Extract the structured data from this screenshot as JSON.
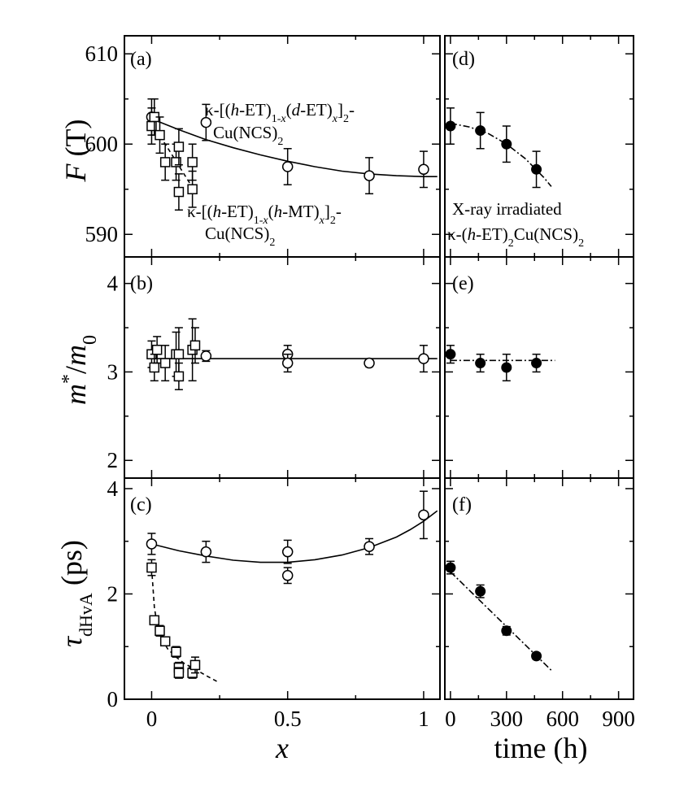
{
  "chart_data": [
    {
      "panel": "(a)",
      "type": "scatter",
      "ylabel": "F (T)",
      "xlabel": "x",
      "xlim": [
        -0.1,
        1.06
      ],
      "ylim": [
        587.5,
        612
      ],
      "xticks": [
        "0",
        "0.5",
        "1"
      ],
      "yticks": [
        "590",
        "600",
        "610"
      ],
      "annotations": [
        "κ-[(h-ET)1-x(d-ET)x]2-Cu(NCS)2",
        "κ-[(h-ET)1-x(h-MT)x]2-Cu(NCS)2"
      ],
      "series": [
        {
          "name": "κ-[(h-ET)1-x(d-ET)x]2-Cu(NCS)2",
          "marker": "circle-open",
          "x": [
            0,
            0.2,
            0.5,
            0.8,
            1.0
          ],
          "y": [
            603,
            602.4,
            597.5,
            596.5,
            597.2
          ],
          "err": [
            2,
            2,
            2,
            2,
            2
          ],
          "fit": "solid",
          "fit_x": [
            0,
            0.1,
            0.2,
            0.3,
            0.4,
            0.5,
            0.6,
            0.7,
            0.8,
            0.9,
            1.0,
            1.05
          ],
          "fit_y": [
            602.8,
            601.6,
            600.5,
            599.6,
            598.8,
            598.1,
            597.5,
            597.0,
            596.7,
            596.5,
            596.4,
            596.4
          ]
        },
        {
          "name": "κ-[(h-ET)1-x(h-MT)x]2-Cu(NCS)2",
          "marker": "square-open",
          "x": [
            0,
            0.01,
            0.03,
            0.05,
            0.09,
            0.1,
            0.1,
            0.15,
            0.15
          ],
          "y": [
            602,
            603,
            601,
            598,
            598,
            599.7,
            594.7,
            598,
            595
          ],
          "err": [
            2,
            2,
            2,
            2,
            2,
            2,
            2,
            2,
            2
          ],
          "fit": "dashed",
          "fit_x": [
            0,
            0.05,
            0.1,
            0.15
          ],
          "fit_y": [
            602.2,
            600.0,
            597.6,
            595.2
          ]
        }
      ]
    },
    {
      "panel": "(b)",
      "type": "scatter",
      "ylabel": "m*/m0",
      "xlim": [
        -0.1,
        1.06
      ],
      "ylim": [
        1.8,
        4.3
      ],
      "yticks": [
        "2",
        "3",
        "4"
      ],
      "series": [
        {
          "name": "κ-[(h-ET)1-x(d-ET)x]2-Cu(NCS)2",
          "marker": "circle-open",
          "x": [
            0.2,
            0.5,
            0.5,
            0.8,
            1.0
          ],
          "y": [
            3.18,
            3.2,
            3.1,
            3.1,
            3.15
          ],
          "err": [
            0.06,
            0.1,
            0.1,
            0.04,
            0.15
          ],
          "fit": "solid",
          "fit_x": [
            0,
            1.05
          ],
          "fit_y": [
            3.15,
            3.15
          ]
        },
        {
          "name": "κ-[(h-ET)1-x(h-MT)x]2-Cu(NCS)2",
          "marker": "square-open",
          "x": [
            0,
            0.01,
            0.02,
            0.05,
            0.09,
            0.1,
            0.1,
            0.15,
            0.16
          ],
          "y": [
            3.2,
            3.05,
            3.25,
            3.1,
            3.2,
            3.2,
            2.95,
            3.25,
            3.3
          ],
          "err": [
            0.15,
            0.15,
            0.15,
            0.2,
            0.25,
            0.3,
            0.15,
            0.35,
            0.2
          ]
        }
      ]
    },
    {
      "panel": "(c)",
      "type": "scatter",
      "ylabel": "τdHvA (ps)",
      "xlabel": "x",
      "xlim": [
        -0.1,
        1.06
      ],
      "ylim": [
        0,
        4.2
      ],
      "yticks": [
        "0",
        "2",
        "4"
      ],
      "series": [
        {
          "name": "κ-[(h-ET)1-x(d-ET)x]2-Cu(NCS)2",
          "marker": "circle-open",
          "x": [
            0,
            0.2,
            0.5,
            0.5,
            0.8,
            1.0
          ],
          "y": [
            2.95,
            2.8,
            2.8,
            2.35,
            2.9,
            3.5
          ],
          "err": [
            0.2,
            0.2,
            0.22,
            0.15,
            0.15,
            0.45
          ],
          "fit": "solid",
          "fit_x": [
            0,
            0.1,
            0.2,
            0.3,
            0.4,
            0.5,
            0.6,
            0.7,
            0.8,
            0.9,
            0.95,
            1.0,
            1.05
          ],
          "fit_y": [
            2.95,
            2.82,
            2.72,
            2.64,
            2.6,
            2.6,
            2.65,
            2.74,
            2.88,
            3.08,
            3.22,
            3.38,
            3.58
          ]
        },
        {
          "name": "κ-[(h-ET)1-x(h-MT)x]2-Cu(NCS)2",
          "marker": "square-open",
          "x": [
            0,
            0.01,
            0.03,
            0.05,
            0.09,
            0.1,
            0.1,
            0.15,
            0.16
          ],
          "y": [
            2.5,
            1.5,
            1.3,
            1.1,
            0.9,
            0.6,
            0.5,
            0.5,
            0.65
          ],
          "err": [
            0.15,
            0.05,
            0.1,
            0.05,
            0.1,
            0.1,
            0.1,
            0.1,
            0.15
          ],
          "fit": "dashed",
          "fit_x": [
            0,
            0.01,
            0.02,
            0.04,
            0.06,
            0.09,
            0.12,
            0.16,
            0.2,
            0.24
          ],
          "fit_y": [
            2.5,
            1.75,
            1.42,
            1.12,
            0.95,
            0.8,
            0.68,
            0.57,
            0.45,
            0.34
          ]
        }
      ]
    },
    {
      "panel": "(d)",
      "type": "scatter",
      "xlabel": "time (h)",
      "xlim": [
        -30,
        980
      ],
      "ylim": [
        587.5,
        612
      ],
      "xticks": [
        "0",
        "300",
        "600",
        "900"
      ],
      "annotations": [
        "X-ray irradiated",
        "κ-(h-ET)2Cu(NCS)2"
      ],
      "series": [
        {
          "name": "X-ray irradiated κ-(h-ET)2Cu(NCS)2",
          "marker": "circle-filled",
          "x": [
            0,
            160,
            300,
            460
          ],
          "y": [
            602,
            601.5,
            600,
            597.2
          ],
          "err": [
            2,
            2,
            2,
            2
          ],
          "fit": "dashdot",
          "fit_x": [
            0,
            100,
            200,
            300,
            400,
            500,
            540
          ],
          "fit_y": [
            602.3,
            601.9,
            601.2,
            600.0,
            598.4,
            596.3,
            595.3
          ]
        }
      ]
    },
    {
      "panel": "(e)",
      "type": "scatter",
      "xlim": [
        -30,
        980
      ],
      "ylim": [
        1.8,
        4.3
      ],
      "series": [
        {
          "name": "X-ray irradiated κ-(h-ET)2Cu(NCS)2",
          "marker": "circle-filled",
          "x": [
            0,
            160,
            300,
            460
          ],
          "y": [
            3.2,
            3.1,
            3.05,
            3.1
          ],
          "err": [
            0.1,
            0.1,
            0.15,
            0.1
          ],
          "fit": "dashdot",
          "fit_x": [
            0,
            560
          ],
          "fit_y": [
            3.13,
            3.13
          ]
        }
      ]
    },
    {
      "panel": "(f)",
      "type": "scatter",
      "xlabel": "time (h)",
      "xlim": [
        -30,
        980
      ],
      "ylim": [
        0,
        4.2
      ],
      "xticks": [
        "0",
        "300",
        "600",
        "900"
      ],
      "series": [
        {
          "name": "X-ray irradiated κ-(h-ET)2Cu(NCS)2",
          "marker": "circle-filled",
          "x": [
            0,
            160,
            300,
            460
          ],
          "y": [
            2.5,
            2.05,
            1.3,
            0.82
          ],
          "err": [
            0.12,
            0.12,
            0.08,
            0.06
          ],
          "fit": "dashdot",
          "fit_x": [
            0,
            540
          ],
          "fit_y": [
            2.42,
            0.55
          ]
        }
      ]
    }
  ]
}
